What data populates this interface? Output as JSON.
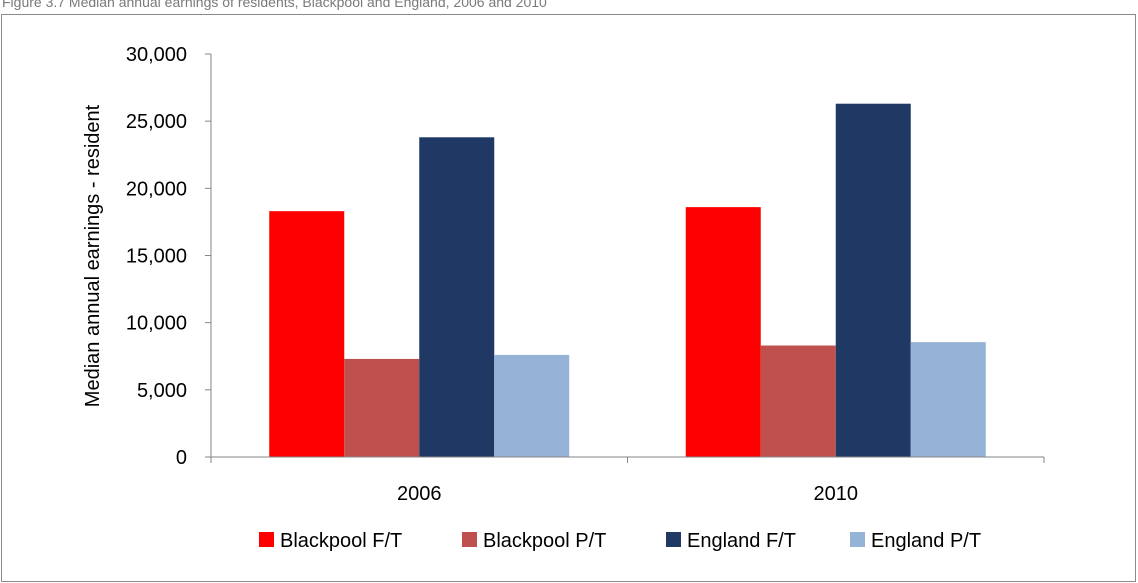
{
  "caption": "Figure 3.7 Median annual earnings of residents, Blackpool and England, 2006 and 2010",
  "chart_data": {
    "type": "bar",
    "categories": [
      "2006",
      "2010"
    ],
    "series": [
      {
        "name": "Blackpool F/T",
        "values": [
          18300,
          18600
        ],
        "color": "#ff0000"
      },
      {
        "name": "Blackpool P/T",
        "values": [
          7300,
          8300
        ],
        "color": "#c0504d"
      },
      {
        "name": "England F/T",
        "values": [
          23800,
          26300
        ],
        "color": "#1f3864"
      },
      {
        "name": "England P/T",
        "values": [
          7600,
          8550
        ],
        "color": "#95b3d7"
      }
    ],
    "title": "",
    "xlabel": "",
    "ylabel": "Median annual earnings - resident",
    "ylim": [
      0,
      30000
    ],
    "yticks": [
      "0",
      "5,000",
      "10,000",
      "15,000",
      "20,000",
      "25,000",
      "30,000"
    ],
    "grid": false,
    "legend_position": "bottom"
  }
}
